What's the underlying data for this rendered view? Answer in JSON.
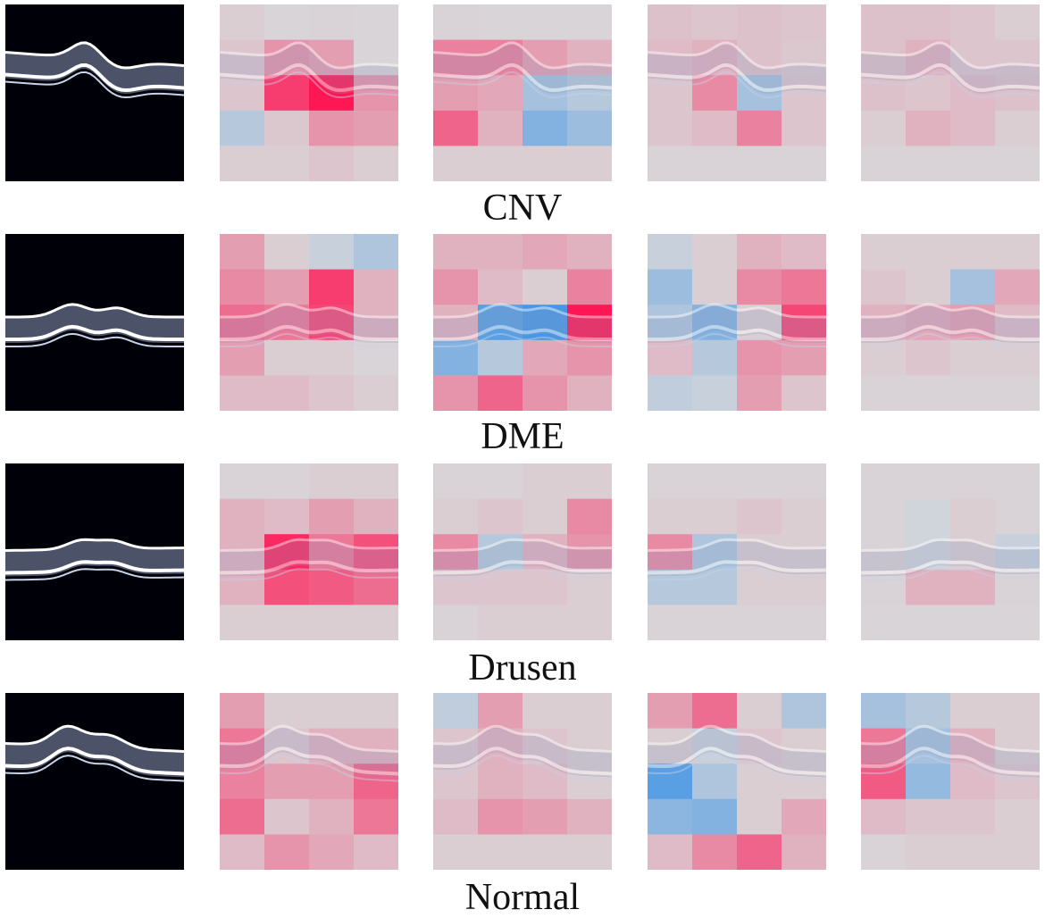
{
  "figure": {
    "rows": [
      {
        "label": "CNV",
        "maps": [
          [
            [
              0.05,
              0.02,
              0.03,
              0.02
            ],
            [
              0.1,
              0.35,
              0.3,
              0.02
            ],
            [
              0.1,
              0.8,
              1.0,
              0.35
            ],
            [
              -0.2,
              0.08,
              0.35,
              0.3
            ],
            [
              0.05,
              0.05,
              0.1,
              0.05
            ]
          ],
          [
            [
              0.03,
              0.02,
              0.02,
              0.02
            ],
            [
              0.45,
              0.45,
              0.3,
              0.2
            ],
            [
              0.3,
              0.25,
              -0.3,
              -0.2
            ],
            [
              0.6,
              0.2,
              -0.5,
              -0.35
            ],
            [
              0.05,
              0.05,
              0.05,
              0.05
            ]
          ],
          [
            [
              0.12,
              0.1,
              0.12,
              0.1
            ],
            [
              0.15,
              0.2,
              0.12,
              0.08
            ],
            [
              0.1,
              0.4,
              -0.3,
              0.1
            ],
            [
              0.1,
              0.15,
              0.45,
              0.1
            ],
            [
              0.03,
              0.03,
              0.03,
              0.03
            ]
          ],
          [
            [
              0.12,
              0.12,
              0.1,
              0.05
            ],
            [
              0.12,
              0.2,
              0.1,
              0.1
            ],
            [
              0.12,
              0.1,
              0.15,
              0.12
            ],
            [
              0.05,
              0.2,
              0.15,
              0.05
            ],
            [
              0.03,
              0.03,
              0.03,
              0.03
            ]
          ]
        ]
      },
      {
        "label": "DME",
        "maps": [
          [
            [
              0.3,
              0.05,
              -0.1,
              -0.25
            ],
            [
              0.4,
              0.3,
              0.8,
              0.2
            ],
            [
              0.55,
              0.5,
              0.75,
              0.2
            ],
            [
              0.3,
              0.05,
              0.05,
              0.02
            ],
            [
              0.15,
              0.15,
              0.1,
              0.05
            ]
          ],
          [
            [
              0.2,
              0.2,
              0.25,
              0.2
            ],
            [
              0.35,
              0.15,
              0.05,
              0.45
            ],
            [
              0.2,
              -0.75,
              -0.85,
              1.0
            ],
            [
              -0.5,
              -0.2,
              0.25,
              0.35
            ],
            [
              0.35,
              0.6,
              0.35,
              0.2
            ]
          ],
          [
            [
              -0.1,
              0.05,
              0.2,
              0.15
            ],
            [
              -0.35,
              0.05,
              0.4,
              0.5
            ],
            [
              -0.25,
              -0.5,
              0.05,
              0.75
            ],
            [
              0.15,
              -0.2,
              0.35,
              0.3
            ],
            [
              -0.15,
              -0.1,
              0.3,
              0.1
            ]
          ],
          [
            [
              0.05,
              0.05,
              0.05,
              0.05
            ],
            [
              0.1,
              0.05,
              -0.3,
              0.25
            ],
            [
              0.2,
              0.25,
              0.3,
              0.15
            ],
            [
              0.05,
              0.1,
              0.05,
              0.05
            ],
            [
              0.03,
              0.03,
              0.03,
              0.03
            ]
          ]
        ]
      },
      {
        "label": "Drusen",
        "maps": [
          [
            [
              0.03,
              0.03,
              0.05,
              0.05
            ],
            [
              0.2,
              0.15,
              0.3,
              0.2
            ],
            [
              0.2,
              0.9,
              0.5,
              0.7
            ],
            [
              0.2,
              0.7,
              0.65,
              0.55
            ],
            [
              0.05,
              0.05,
              0.05,
              0.05
            ]
          ],
          [
            [
              0.03,
              0.03,
              0.05,
              0.05
            ],
            [
              0.05,
              0.1,
              0.05,
              0.4
            ],
            [
              0.4,
              -0.2,
              0.2,
              0.35
            ],
            [
              0.1,
              0.1,
              0.1,
              0.05
            ],
            [
              0.03,
              0.05,
              0.05,
              0.05
            ]
          ],
          [
            [
              0.03,
              0.03,
              0.03,
              0.03
            ],
            [
              0.05,
              0.05,
              0.1,
              0.05
            ],
            [
              0.4,
              -0.25,
              0.05,
              0.05
            ],
            [
              -0.2,
              -0.2,
              0.05,
              0.05
            ],
            [
              0.03,
              0.03,
              0.03,
              0.03
            ]
          ],
          [
            [
              0.03,
              0.03,
              0.03,
              0.03
            ],
            [
              0.03,
              -0.05,
              0.05,
              0.03
            ],
            [
              0.03,
              -0.05,
              0.05,
              -0.1
            ],
            [
              0.03,
              0.2,
              0.2,
              0.03
            ],
            [
              0.02,
              0.02,
              0.02,
              0.02
            ]
          ]
        ]
      },
      {
        "label": "Normal",
        "maps": [
          [
            [
              0.3,
              0.05,
              0.05,
              0.05
            ],
            [
              0.5,
              0.1,
              0.2,
              0.2
            ],
            [
              0.45,
              0.3,
              0.3,
              0.6
            ],
            [
              0.55,
              0.1,
              0.2,
              0.5
            ],
            [
              0.15,
              0.35,
              0.25,
              0.15
            ]
          ],
          [
            [
              -0.15,
              0.3,
              0.05,
              0.05
            ],
            [
              0.1,
              0.2,
              0.1,
              0.05
            ],
            [
              0.1,
              0.2,
              0.15,
              0.05
            ],
            [
              0.15,
              0.35,
              0.3,
              0.2
            ],
            [
              0.05,
              0.05,
              0.05,
              0.05
            ]
          ],
          [
            [
              0.3,
              0.55,
              0.05,
              -0.25
            ],
            [
              0.05,
              -0.1,
              0.1,
              0.05
            ],
            [
              -0.75,
              -0.25,
              0.05,
              0.05
            ],
            [
              -0.45,
              -0.5,
              0.05,
              0.25
            ],
            [
              0.15,
              0.4,
              0.6,
              0.2
            ]
          ],
          [
            [
              -0.3,
              -0.2,
              0.05,
              0.05
            ],
            [
              0.5,
              -0.3,
              0.2,
              0.05
            ],
            [
              0.65,
              -0.4,
              0.15,
              0.1
            ],
            [
              0.15,
              0.1,
              0.1,
              0.05
            ],
            [
              0.03,
              0.05,
              0.05,
              0.05
            ]
          ]
        ]
      }
    ]
  },
  "colors": {
    "positive": "#ff1654",
    "negative": "#2f8ce6",
    "neutral": "#d8d8da",
    "scan_background": "#000008",
    "label_text": "#111111"
  }
}
